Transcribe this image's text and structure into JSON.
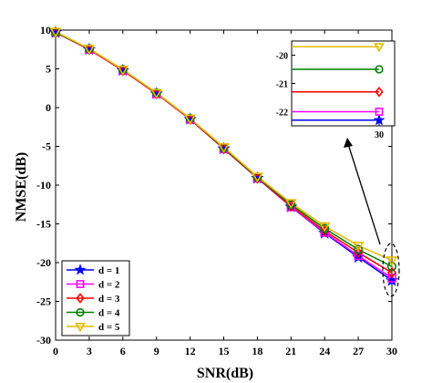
{
  "chart_data": {
    "type": "line",
    "title": "",
    "xlabel": "SNR(dB)",
    "ylabel": "NMSE(dB)",
    "x": [
      0,
      3,
      6,
      9,
      12,
      15,
      18,
      21,
      24,
      27,
      30
    ],
    "xlim": [
      0,
      30
    ],
    "ylim": [
      -30,
      10
    ],
    "xticks": [
      "0",
      "3",
      "6",
      "9",
      "12",
      "15",
      "18",
      "21",
      "24",
      "27",
      "30"
    ],
    "yticks": [
      "10",
      "5",
      "0",
      "-5",
      "-10",
      "-15",
      "-20",
      "-25",
      "-30"
    ],
    "grid": false,
    "legend_position": "bottom-left",
    "series": [
      {
        "name": "d = 1",
        "color": "#0000ff",
        "marker": "star",
        "values": [
          9.7,
          7.5,
          4.8,
          1.8,
          -1.5,
          -5.3,
          -9.1,
          -12.8,
          -16.2,
          -19.3,
          -22.3
        ]
      },
      {
        "name": "d = 2",
        "color": "#ff00ff",
        "marker": "square",
        "values": [
          9.7,
          7.5,
          4.8,
          1.8,
          -1.5,
          -5.3,
          -9.1,
          -12.8,
          -16.1,
          -19.1,
          -22.0
        ]
      },
      {
        "name": "d = 3",
        "color": "#ff0000",
        "marker": "diamond",
        "values": [
          9.7,
          7.5,
          4.8,
          1.8,
          -1.5,
          -5.3,
          -9.1,
          -12.7,
          -15.9,
          -18.7,
          -21.3
        ]
      },
      {
        "name": "d = 4",
        "color": "#008000",
        "marker": "circle",
        "values": [
          9.7,
          7.6,
          4.9,
          1.9,
          -1.4,
          -5.2,
          -9.0,
          -12.5,
          -15.6,
          -18.3,
          -20.5
        ]
      },
      {
        "name": "d = 5",
        "color": "#e6b800",
        "marker": "triangle-down",
        "values": [
          9.8,
          7.6,
          4.9,
          1.9,
          -1.4,
          -5.1,
          -8.9,
          -12.3,
          -15.3,
          -17.8,
          -19.7
        ]
      }
    ],
    "inset": {
      "x": 30,
      "ylim": [
        -22.5,
        -19.5
      ],
      "xticks": [
        "30"
      ],
      "yticks": [
        "-20",
        "-21",
        "-22"
      ]
    },
    "annotation": {
      "type": "arrow",
      "from": "dashed ellipse at x=30",
      "to": "zoom inset"
    }
  }
}
